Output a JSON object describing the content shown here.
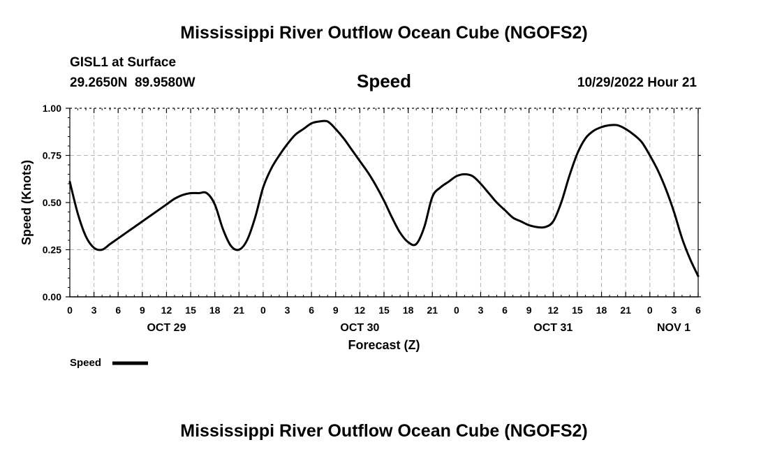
{
  "title": "Mississippi River Outflow Ocean Cube (NGOFS2)",
  "footer_title": "Mississippi River Outflow Ocean Cube (NGOFS2)",
  "station": {
    "name": "GISL1 at Surface",
    "coords": "29.2650N  89.9580W"
  },
  "variable": "Speed",
  "run_time": "10/29/2022 Hour 21",
  "legend": {
    "label": "Speed"
  },
  "colors": {
    "line": "#000000",
    "grid": "#b4b4b4"
  },
  "chart_data": {
    "type": "line",
    "xlabel": "Forecast (Z)",
    "ylabel": "Speed (Knots)",
    "xlim": [
      0,
      78
    ],
    "ylim": [
      0,
      1
    ],
    "y_ticks": [
      "0.00",
      "0.25",
      "0.50",
      "0.75",
      "1.00"
    ],
    "x_ticks": [
      "0",
      "3",
      "6",
      "9",
      "12",
      "15",
      "18",
      "21",
      "0",
      "3",
      "6",
      "9",
      "12",
      "15",
      "18",
      "21",
      "0",
      "3",
      "6",
      "9",
      "12",
      "15",
      "18",
      "21",
      "0",
      "3",
      "6"
    ],
    "date_labels": [
      {
        "label": "OCT 29",
        "hour": 12
      },
      {
        "label": "OCT 30",
        "hour": 36
      },
      {
        "label": "OCT 31",
        "hour": 60
      },
      {
        "label": "NOV 1",
        "hour": 84
      }
    ],
    "grid": true,
    "legend_position": "bottom-left",
    "series": [
      {
        "name": "Speed",
        "x": [
          0,
          1,
          2,
          3,
          4,
          5,
          6,
          7,
          8,
          9,
          10,
          11,
          12,
          13,
          14,
          15,
          16,
          17,
          18,
          19,
          20,
          21,
          22,
          23,
          24,
          25,
          26,
          27,
          28,
          29,
          30,
          31,
          32,
          33,
          34,
          35,
          36,
          37,
          38,
          39,
          40,
          41,
          42,
          43,
          44,
          45,
          46,
          47,
          48,
          49,
          50,
          51,
          52,
          53,
          54,
          55,
          56,
          57,
          58,
          59,
          60,
          61,
          62,
          63,
          64,
          65,
          66,
          67,
          68,
          69,
          70,
          71,
          72,
          73,
          74,
          75,
          76,
          77,
          78
        ],
        "values": [
          0.61,
          0.44,
          0.32,
          0.26,
          0.25,
          0.28,
          0.31,
          0.34,
          0.37,
          0.4,
          0.43,
          0.46,
          0.49,
          0.52,
          0.54,
          0.55,
          0.55,
          0.55,
          0.49,
          0.36,
          0.27,
          0.25,
          0.3,
          0.42,
          0.58,
          0.68,
          0.75,
          0.81,
          0.86,
          0.89,
          0.92,
          0.93,
          0.93,
          0.89,
          0.84,
          0.78,
          0.72,
          0.66,
          0.59,
          0.51,
          0.42,
          0.34,
          0.29,
          0.28,
          0.37,
          0.53,
          0.58,
          0.61,
          0.64,
          0.65,
          0.64,
          0.6,
          0.55,
          0.5,
          0.46,
          0.42,
          0.4,
          0.38,
          0.37,
          0.37,
          0.4,
          0.5,
          0.64,
          0.76,
          0.84,
          0.88,
          0.9,
          0.91,
          0.91,
          0.89,
          0.86,
          0.82,
          0.75,
          0.67,
          0.57,
          0.45,
          0.31,
          0.2,
          0.11
        ]
      }
    ]
  }
}
